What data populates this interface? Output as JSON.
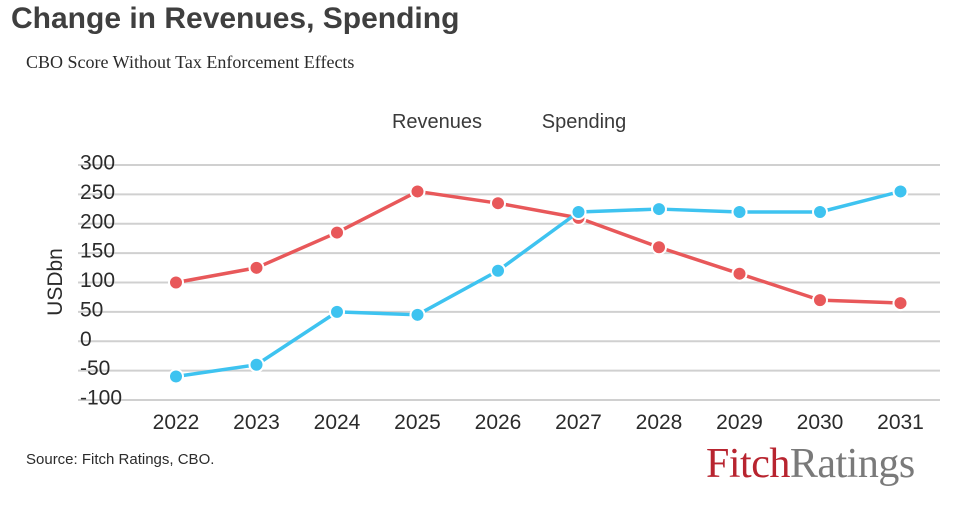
{
  "title": "Change in Revenues, Spending",
  "subtitle": "CBO Score Without Tax Enforcement Effects",
  "source": "Source: Fitch Ratings, CBO.",
  "logo": {
    "part1": "Fitch",
    "part2": "Ratings"
  },
  "colors": {
    "revenues": "#e8585a",
    "spending": "#3ec3f0",
    "grid": "#d0d0d0",
    "text": "#2b2b2b"
  },
  "chart_data": {
    "type": "line",
    "x": [
      "2022",
      "2023",
      "2024",
      "2025",
      "2026",
      "2027",
      "2028",
      "2029",
      "2030",
      "2031"
    ],
    "ylabel": "USDbn",
    "ylim": [
      -100,
      300
    ],
    "yticks": [
      "300",
      "250",
      "200",
      "150",
      "100",
      "50",
      "0",
      "-50",
      "-100"
    ],
    "ytick_values": [
      300,
      250,
      200,
      150,
      100,
      50,
      0,
      -50,
      -100
    ],
    "grid": true,
    "legend_placement": "top-center",
    "series": [
      {
        "name": "Revenues",
        "values": [
          100,
          125,
          185,
          255,
          235,
          210,
          160,
          115,
          70,
          65
        ]
      },
      {
        "name": "Spending",
        "values": [
          -60,
          -40,
          50,
          45,
          120,
          220,
          225,
          220,
          220,
          255
        ]
      }
    ]
  }
}
